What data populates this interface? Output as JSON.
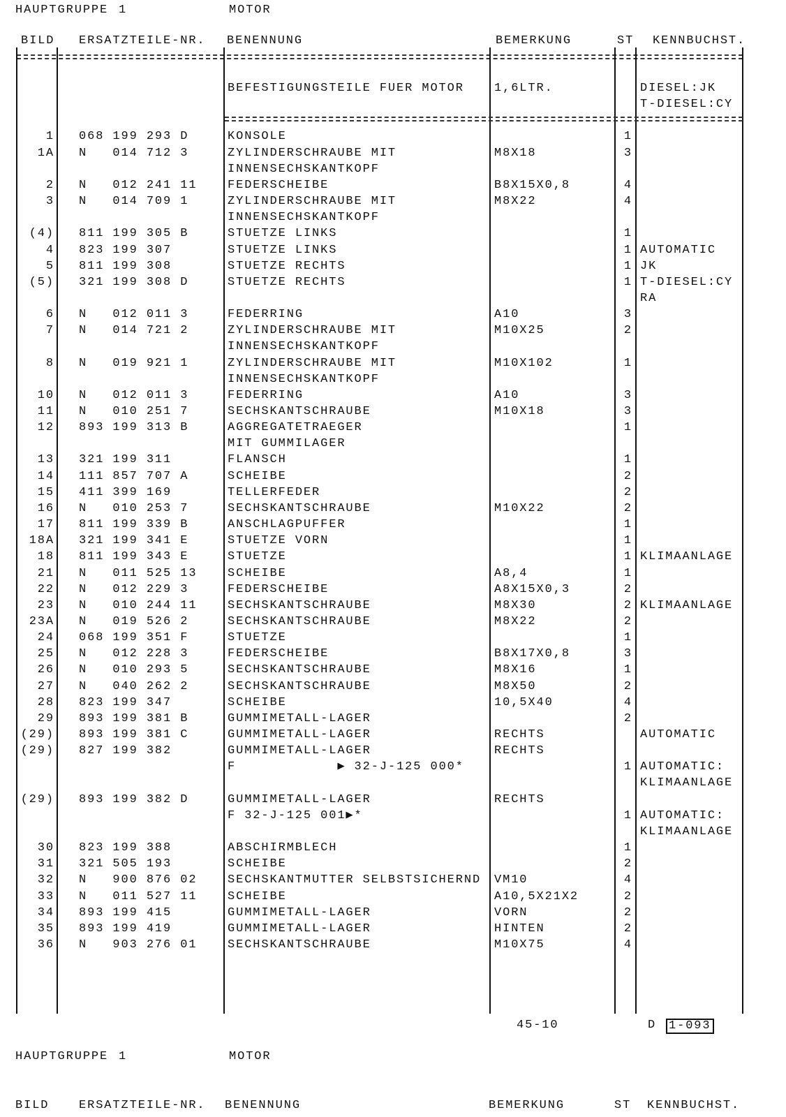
{
  "header": {
    "group_label": "HAUPTGRUPPE",
    "group_no": "1",
    "group_name": "MOTOR"
  },
  "columns": {
    "bild": "BILD",
    "nr": "ERSATZTEILE-NR.",
    "ben": "BENENNUNG",
    "bem": "BEMERKUNG",
    "st": "ST",
    "kb": "KENNBUCHST."
  },
  "rows": [
    {
      "b": "",
      "n": "",
      "t": "BEFESTIGUNGSTEILE FUER MOTOR",
      "r": "1,6LTR.",
      "s": "",
      "k": "DIESEL:JK"
    },
    {
      "b": "",
      "n": "",
      "t": "",
      "r": "",
      "s": "",
      "k": "T-DIESEL:CY"
    },
    {
      "sep": true
    },
    {
      "b": "1",
      "n": "068 199 293 D",
      "t": "KONSOLE",
      "r": "",
      "s": "1",
      "k": ""
    },
    {
      "b": "1A",
      "n": "N   014 712 3",
      "t": "ZYLINDERSCHRAUBE MIT",
      "r": "M8X18",
      "s": "3",
      "k": ""
    },
    {
      "b": "",
      "n": "",
      "t": "INNENSECHSKANTKOPF",
      "r": "",
      "s": "",
      "k": ""
    },
    {
      "b": "2",
      "n": "N   012 241 11",
      "t": "FEDERSCHEIBE",
      "r": "B8X15X0,8",
      "s": "4",
      "k": ""
    },
    {
      "b": "3",
      "n": "N   014 709 1",
      "t": "ZYLINDERSCHRAUBE MIT",
      "r": "M8X22",
      "s": "4",
      "k": ""
    },
    {
      "b": "",
      "n": "",
      "t": "INNENSECHSKANTKOPF",
      "r": "",
      "s": "",
      "k": ""
    },
    {
      "b": "(4)",
      "n": "811 199 305 B",
      "t": "STUETZE LINKS",
      "r": "",
      "s": "1",
      "k": ""
    },
    {
      "b": "4",
      "n": "823 199 307",
      "t": "STUETZE LINKS",
      "r": "",
      "s": "1",
      "k": "AUTOMATIC"
    },
    {
      "b": "5",
      "n": "811 199 308",
      "t": "STUETZE RECHTS",
      "r": "",
      "s": "1",
      "k": "JK"
    },
    {
      "b": "(5)",
      "n": "321 199 308 D",
      "t": "STUETZE RECHTS",
      "r": "",
      "s": "1",
      "k": "T-DIESEL:CY"
    },
    {
      "b": "",
      "n": "",
      "t": "",
      "r": "",
      "s": "",
      "k": "RA"
    },
    {
      "b": "6",
      "n": "N   012 011 3",
      "t": "FEDERRING",
      "r": "A10",
      "s": "3",
      "k": ""
    },
    {
      "b": "7",
      "n": "N   014 721 2",
      "t": "ZYLINDERSCHRAUBE MIT",
      "r": "M10X25",
      "s": "2",
      "k": ""
    },
    {
      "b": "",
      "n": "",
      "t": "INNENSECHSKANTKOPF",
      "r": "",
      "s": "",
      "k": ""
    },
    {
      "b": "8",
      "n": "N   019 921 1",
      "t": "ZYLINDERSCHRAUBE MIT",
      "r": "M10X102",
      "s": "1",
      "k": ""
    },
    {
      "b": "",
      "n": "",
      "t": "INNENSECHSKANTKOPF",
      "r": "",
      "s": "",
      "k": ""
    },
    {
      "b": "10",
      "n": "N   012 011 3",
      "t": "FEDERRING",
      "r": "A10",
      "s": "3",
      "k": ""
    },
    {
      "b": "11",
      "n": "N   010 251 7",
      "t": "SECHSKANTSCHRAUBE",
      "r": "M10X18",
      "s": "3",
      "k": ""
    },
    {
      "b": "12",
      "n": "893 199 313 B",
      "t": "AGGREGATETRAEGER",
      "r": "",
      "s": "1",
      "k": ""
    },
    {
      "b": "",
      "n": "",
      "t": "MIT GUMMILAGER",
      "r": "",
      "s": "",
      "k": ""
    },
    {
      "b": "13",
      "n": "321 199 311",
      "t": "FLANSCH",
      "r": "",
      "s": "1",
      "k": ""
    },
    {
      "b": "14",
      "n": "111 857 707 A",
      "t": "SCHEIBE",
      "r": "",
      "s": "2",
      "k": ""
    },
    {
      "b": "15",
      "n": "411 399 169",
      "t": "TELLERFEDER",
      "r": "",
      "s": "2",
      "k": ""
    },
    {
      "b": "16",
      "n": "N   010 253 7",
      "t": "SECHSKANTSCHRAUBE",
      "r": "M10X22",
      "s": "2",
      "k": ""
    },
    {
      "b": "17",
      "n": "811 199 339 B",
      "t": "ANSCHLAGPUFFER",
      "r": "",
      "s": "1",
      "k": ""
    },
    {
      "b": "18A",
      "n": "321 199 341 E",
      "t": "STUETZE VORN",
      "r": "",
      "s": "1",
      "k": ""
    },
    {
      "b": "18",
      "n": "811 199 343 E",
      "t": "STUETZE",
      "r": "",
      "s": "1",
      "k": "KLIMAANLAGE"
    },
    {
      "b": "21",
      "n": "N   011 525 13",
      "t": "SCHEIBE",
      "r": "A8,4",
      "s": "1",
      "k": ""
    },
    {
      "b": "22",
      "n": "N   012 229 3",
      "t": "FEDERSCHEIBE",
      "r": "A8X15X0,3",
      "s": "2",
      "k": ""
    },
    {
      "b": "23",
      "n": "N   010 244 11",
      "t": "SECHSKANTSCHRAUBE",
      "r": "M8X30",
      "s": "2",
      "k": "KLIMAANLAGE"
    },
    {
      "b": "23A",
      "n": "N   019 526 2",
      "t": "SECHSKANTSCHRAUBE",
      "r": "M8X22",
      "s": "2",
      "k": ""
    },
    {
      "b": "24",
      "n": "068 199 351 F",
      "t": "STUETZE",
      "r": "",
      "s": "1",
      "k": ""
    },
    {
      "b": "25",
      "n": "N   012 228 3",
      "t": "FEDERSCHEIBE",
      "r": "B8X17X0,8",
      "s": "3",
      "k": ""
    },
    {
      "b": "26",
      "n": "N   010 293 5",
      "t": "SECHSKANTSCHRAUBE",
      "r": "M8X16",
      "s": "1",
      "k": ""
    },
    {
      "b": "27",
      "n": "N   040 262 2",
      "t": "SECHSKANTSCHRAUBE",
      "r": "M8X50",
      "s": "2",
      "k": ""
    },
    {
      "b": "28",
      "n": "823 199 347",
      "t": "SCHEIBE",
      "r": "10,5X40",
      "s": "4",
      "k": ""
    },
    {
      "b": "29",
      "n": "893 199 381 B",
      "t": "GUMMIMETALL-LAGER",
      "r": "",
      "s": "2",
      "k": ""
    },
    {
      "b": "(29)",
      "n": "893 199 381 C",
      "t": "GUMMIMETALL-LAGER",
      "r": "RECHTS",
      "s": "",
      "k": "AUTOMATIC"
    },
    {
      "b": "(29)",
      "n": "827 199 382",
      "t": "GUMMIMETALL-LAGER",
      "r": "RECHTS",
      "s": "",
      "k": ""
    },
    {
      "b": "",
      "n": "",
      "t": "F            ▶ 32-J-125 000*",
      "r": "",
      "s": "1",
      "k": "AUTOMATIC:"
    },
    {
      "b": "",
      "n": "",
      "t": "",
      "r": "",
      "s": "",
      "k": "KLIMAANLAGE"
    },
    {
      "b": "(29)",
      "n": "893 199 382 D",
      "t": "GUMMIMETALL-LAGER",
      "r": "RECHTS",
      "s": "",
      "k": ""
    },
    {
      "b": "",
      "n": "",
      "t": "F 32-J-125 001▶*",
      "r": "",
      "s": "1",
      "k": "AUTOMATIC:"
    },
    {
      "b": "",
      "n": "",
      "t": "",
      "r": "",
      "s": "",
      "k": "KLIMAANLAGE"
    },
    {
      "b": "30",
      "n": "823 199 388",
      "t": "ABSCHIRMBLECH",
      "r": "",
      "s": "1",
      "k": ""
    },
    {
      "b": "31",
      "n": "321 505 193",
      "t": "SCHEIBE",
      "r": "",
      "s": "2",
      "k": ""
    },
    {
      "b": "32",
      "n": "N   900 876 02",
      "t": "SECHSKANTMUTTER SELBSTSICHERND",
      "r": "VM10",
      "s": "4",
      "k": ""
    },
    {
      "b": "33",
      "n": "N   011 527 11",
      "t": "SCHEIBE",
      "r": "A10,5X21X2",
      "s": "2",
      "k": ""
    },
    {
      "b": "34",
      "n": "893 199 415",
      "t": "GUMMIMETALL-LAGER",
      "r": "VORN",
      "s": "2",
      "k": ""
    },
    {
      "b": "35",
      "n": "893 199 419",
      "t": "GUMMIMETALL-LAGER",
      "r": "HINTEN",
      "s": "2",
      "k": ""
    },
    {
      "b": "36",
      "n": "N   903 276 01",
      "t": "SECHSKANTSCHRAUBE",
      "r": "M10X75",
      "s": "4",
      "k": ""
    }
  ],
  "footer": {
    "page_ref": "45-10",
    "lang": "D",
    "page_code": "1-093"
  }
}
